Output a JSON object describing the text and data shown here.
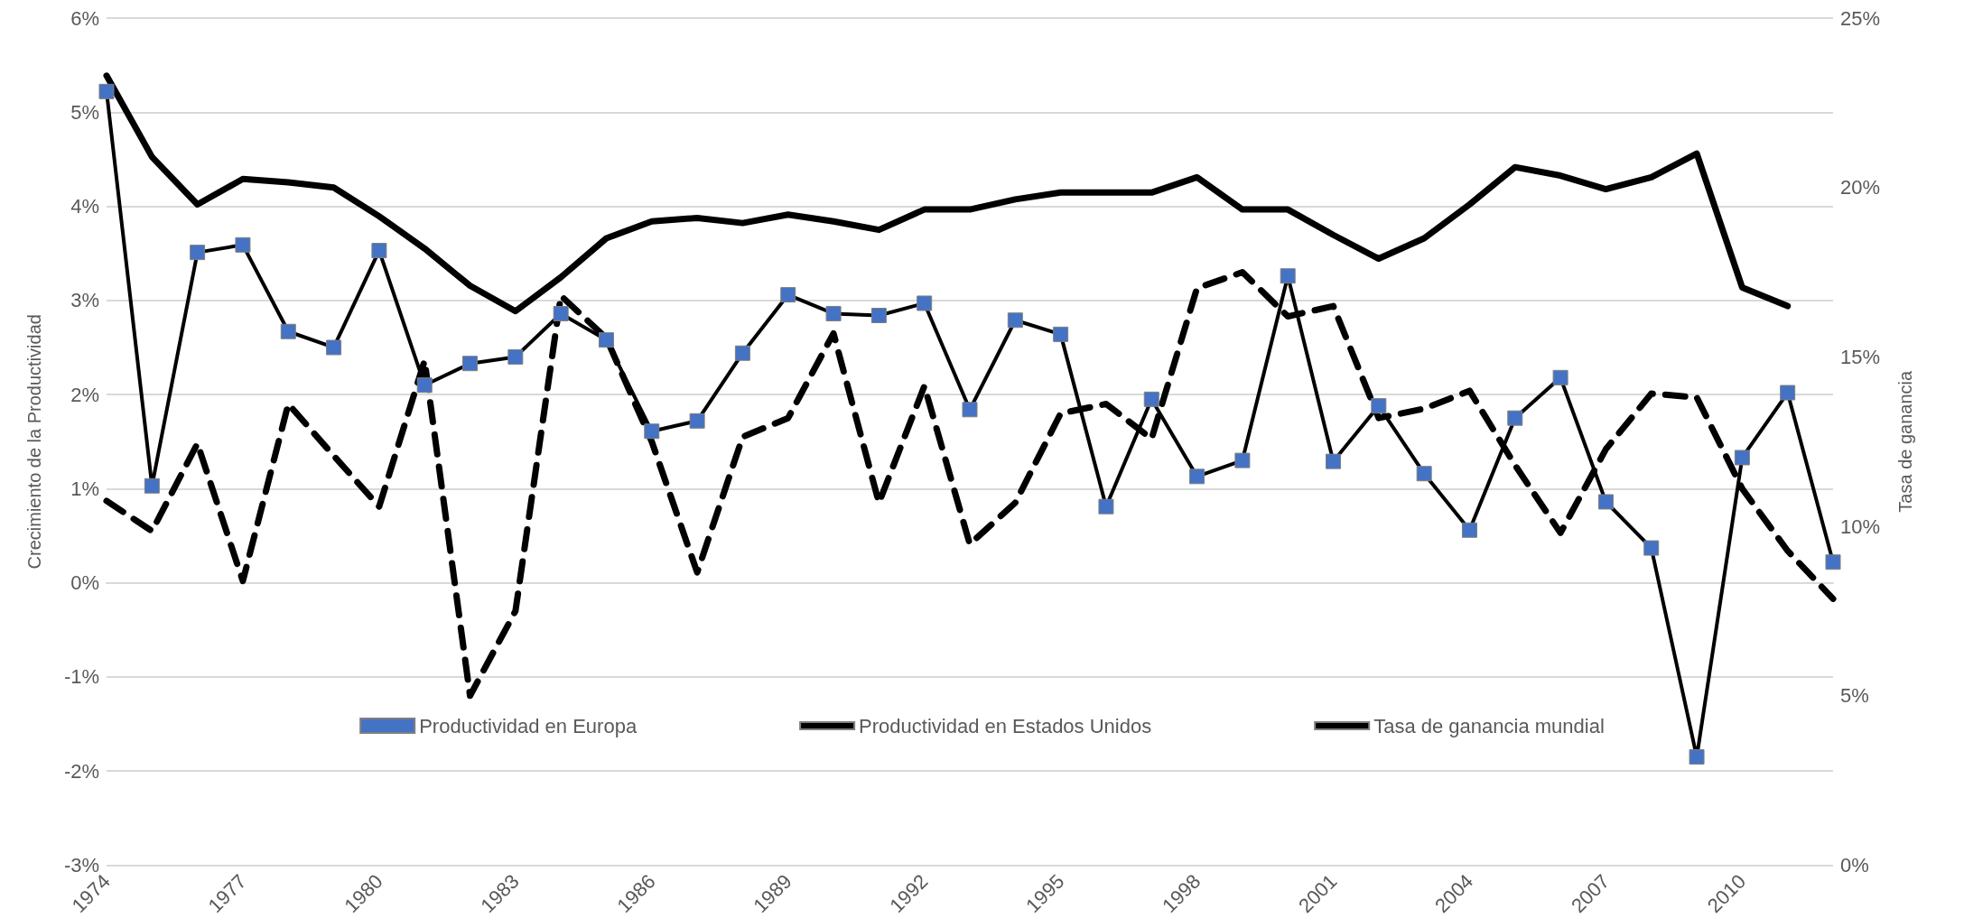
{
  "chart_data": {
    "type": "line",
    "xlabel": null,
    "ylabel": "Crecimiento de la Productividad",
    "y2label": "Tasa de ganancia",
    "categories": [
      "1974",
      null,
      null,
      "1977",
      null,
      null,
      "1980",
      null,
      null,
      "1983",
      null,
      null,
      "1986",
      null,
      null,
      "1989",
      null,
      null,
      "1992",
      null,
      null,
      "1995",
      null,
      null,
      "1998",
      null,
      null,
      "2001",
      null,
      null,
      "2004",
      null,
      null,
      "2007",
      null,
      null,
      "2010",
      null,
      null
    ],
    "series": [
      {
        "name": "Productividad en Europa",
        "color": "#4472c4",
        "marker": "square",
        "line_style": "solid",
        "values": [
          5.22,
          1.03,
          3.51,
          3.59,
          2.67,
          2.5,
          3.53,
          2.1,
          2.33,
          2.4,
          2.86,
          2.58,
          1.61,
          1.72,
          2.44,
          3.06,
          2.86,
          2.84,
          2.97,
          1.84,
          2.79,
          2.64,
          0.81,
          1.95,
          1.13,
          1.3,
          3.26,
          1.29,
          1.88,
          1.16,
          0.56,
          1.75,
          2.18,
          0.86,
          0.37,
          -1.85,
          1.33,
          2.02,
          0.22
        ]
      },
      {
        "name": "Productividad en Estados Unidos",
        "color": "#000000",
        "marker": "none",
        "line_style": "dashed",
        "values": [
          0.87,
          0.55,
          1.48,
          0.02,
          1.9,
          1.35,
          0.81,
          2.36,
          -1.2,
          -0.3,
          3.05,
          2.6,
          1.5,
          0.11,
          1.55,
          1.75,
          2.65,
          0.85,
          2.09,
          0.41,
          0.85,
          1.8,
          1.9,
          1.53,
          3.13,
          3.3,
          2.83,
          2.94,
          1.75,
          1.85,
          2.04,
          1.25,
          0.53,
          1.42,
          2.01,
          1.97,
          1.0,
          0.34,
          -0.17
        ]
      },
      {
        "name": "Tasa de ganancia mundial",
        "color": "#000000",
        "marker": "none",
        "line_style": "solid",
        "axis": "y2",
        "values": [
          23.3,
          20.9,
          19.5,
          20.25,
          20.15,
          20.0,
          19.15,
          18.2,
          17.1,
          16.35,
          17.35,
          18.5,
          19.0,
          19.1,
          18.95,
          19.2,
          19.0,
          18.75,
          19.35,
          19.35,
          19.65,
          19.85,
          19.85,
          19.85,
          20.3,
          19.35,
          19.35,
          18.6,
          17.9,
          18.5,
          19.5,
          20.6,
          20.35,
          19.95,
          20.3,
          21.0,
          17.05,
          16.5,
          null
        ]
      }
    ],
    "ylim": [
      -3,
      6
    ],
    "yticks": [
      {
        "value": -3,
        "label": "-3%"
      },
      {
        "value": -2,
        "label": "-2%"
      },
      {
        "value": -1,
        "label": "-1%"
      },
      {
        "value": 0,
        "label": "0%"
      },
      {
        "value": 1,
        "label": "1%"
      },
      {
        "value": 2,
        "label": "2%"
      },
      {
        "value": 3,
        "label": "3%"
      },
      {
        "value": 4,
        "label": "4%"
      },
      {
        "value": 5,
        "label": "5%"
      },
      {
        "value": 6,
        "label": "6%"
      }
    ],
    "y2lim": [
      0,
      25
    ],
    "y2ticks": [
      {
        "value": 0,
        "label": "0%"
      },
      {
        "value": 5,
        "label": "5%"
      },
      {
        "value": 10,
        "label": "10%"
      },
      {
        "value": 15,
        "label": "15%"
      },
      {
        "value": 20,
        "label": "20%"
      },
      {
        "value": 25,
        "label": "25%"
      }
    ],
    "grid": "y",
    "legend": "bottom"
  }
}
